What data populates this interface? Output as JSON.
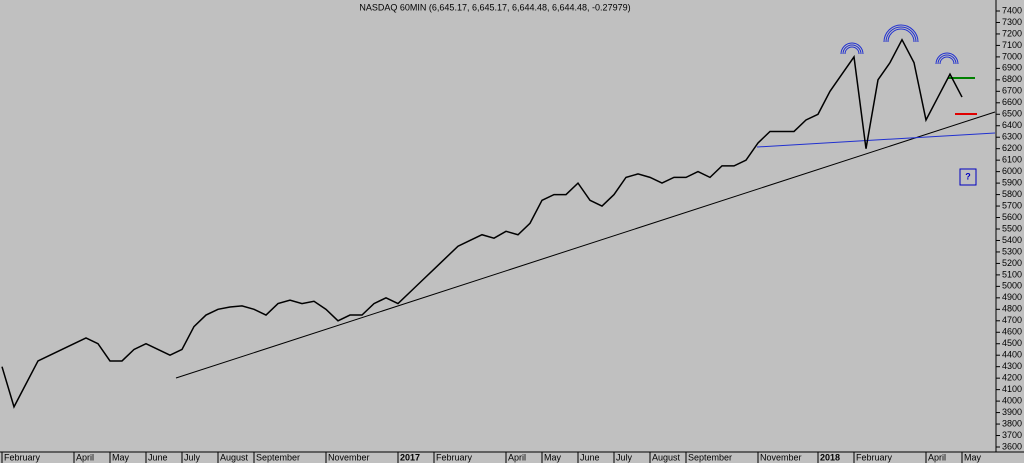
{
  "chart_data": {
    "type": "line",
    "title": "NASDAQ 60MIN (6,645.17, 6,645.17, 6,644.48, 6,644.48, -0.27979)",
    "categories": [
      "February",
      null,
      null,
      null,
      null,
      null,
      "April",
      null,
      null,
      "May",
      null,
      null,
      "June",
      null,
      null,
      "July",
      null,
      null,
      "August",
      null,
      null,
      "September",
      null,
      null,
      null,
      null,
      null,
      "November",
      null,
      null,
      null,
      null,
      null,
      "2017",
      null,
      null,
      "February",
      null,
      null,
      null,
      null,
      null,
      "April",
      null,
      null,
      "May",
      null,
      null,
      "June",
      null,
      null,
      "July",
      null,
      null,
      "August",
      null,
      null,
      "September",
      null,
      null,
      null,
      null,
      null,
      "November",
      null,
      null,
      null,
      null,
      "2018",
      null,
      null,
      "February",
      null,
      null,
      null,
      null,
      null,
      "April",
      null,
      null,
      "May"
    ],
    "values": [
      4300,
      3950,
      4150,
      4350,
      4400,
      4450,
      4500,
      4550,
      4500,
      4350,
      4350,
      4450,
      4500,
      4450,
      4400,
      4450,
      4650,
      4750,
      4800,
      4820,
      4830,
      4800,
      4750,
      4850,
      4880,
      4850,
      4870,
      4800,
      4700,
      4750,
      4750,
      4850,
      4900,
      4850,
      4950,
      5050,
      5150,
      5250,
      5350,
      5400,
      5450,
      5420,
      5480,
      5450,
      5550,
      5750,
      5800,
      5800,
      5900,
      5750,
      5700,
      5800,
      5950,
      5980,
      5950,
      5900,
      5950,
      5950,
      6000,
      5950,
      6050,
      6050,
      6100,
      6250,
      6350,
      6350,
      6350,
      6450,
      6500,
      6700,
      6850,
      7000,
      6200,
      6800,
      6950,
      7150,
      6950,
      6450,
      6650,
      6850,
      6650
    ],
    "color": "#000000",
    "ylim": [
      3600,
      7400
    ],
    "yticks": [
      3600,
      3700,
      3800,
      3900,
      4000,
      4100,
      4200,
      4300,
      4400,
      4500,
      4600,
      4700,
      4800,
      4900,
      5000,
      5100,
      5200,
      5300,
      5400,
      5500,
      5600,
      5700,
      5800,
      5900,
      6000,
      6100,
      6200,
      6300,
      6400,
      6500,
      6600,
      6700,
      6800,
      6900,
      7000,
      7100,
      7200,
      7300,
      7400
    ],
    "annotation": "?"
  }
}
